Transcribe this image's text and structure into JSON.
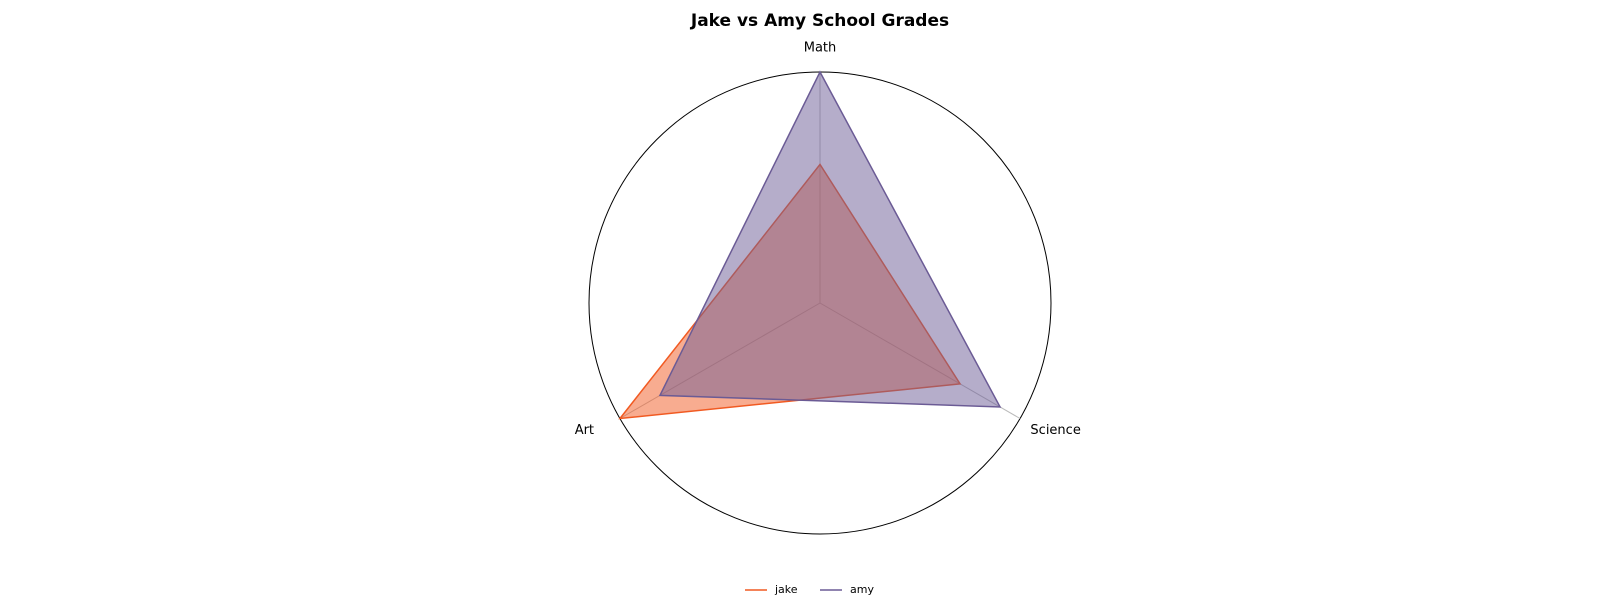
{
  "chart_data": {
    "type": "radar",
    "title": "Jake vs Amy School Grades",
    "categories": [
      "Math",
      "Science",
      "Art"
    ],
    "series": [
      {
        "name": "jake",
        "color": "#f15a22",
        "values": [
          6,
          7,
          10
        ]
      },
      {
        "name": "amy",
        "color": "#6b5b95",
        "values": [
          10,
          9,
          8
        ]
      }
    ],
    "ylim": [
      0,
      10
    ],
    "legend": "bottom"
  }
}
